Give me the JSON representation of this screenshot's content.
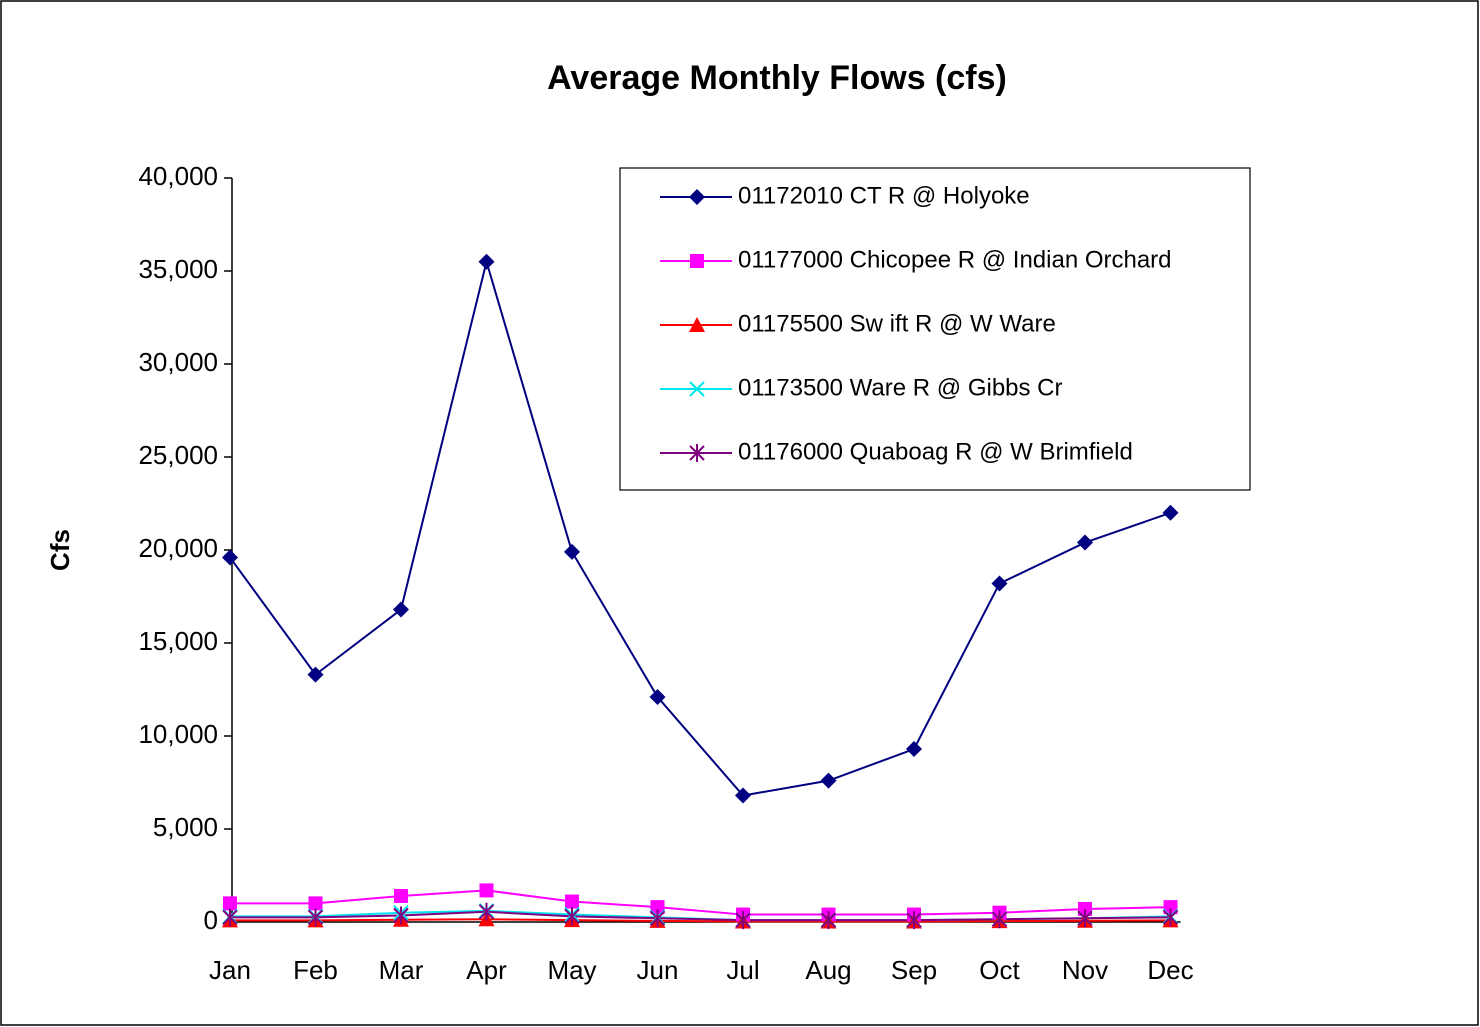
{
  "chart_data": {
    "type": "line",
    "title": "Average Monthly Flows (cfs)",
    "y_label": "Cfs",
    "categories": [
      "Jan",
      "Feb",
      "Mar",
      "Apr",
      "May",
      "Jun",
      "Jul",
      "Aug",
      "Sep",
      "Oct",
      "Nov",
      "Dec"
    ],
    "series": [
      {
        "name": "01172010 CT R @ Holyoke",
        "color": "#000080",
        "marker": "diamond",
        "values": [
          19600,
          13300,
          16800,
          35500,
          19900,
          12100,
          6800,
          7600,
          9300,
          18200,
          20400,
          22000
        ]
      },
      {
        "name": "01177000 Chicopee R @ Indian Orchard",
        "color": "#ff00ff",
        "marker": "square",
        "values": [
          1000,
          1000,
          1400,
          1700,
          1100,
          800,
          400,
          400,
          400,
          500,
          700,
          800
        ]
      },
      {
        "name": "01175500 Sw ift R @ W Ware",
        "color": "#ff0000",
        "marker": "triangle",
        "values": [
          90,
          90,
          120,
          150,
          100,
          60,
          30,
          30,
          30,
          50,
          70,
          90
        ]
      },
      {
        "name": "01173500 Ware R @ Gibbs Cr",
        "color": "#00e5ee",
        "marker": "x",
        "values": [
          300,
          300,
          500,
          600,
          400,
          250,
          100,
          100,
          100,
          150,
          200,
          300
        ]
      },
      {
        "name": "01176000 Quaboag R @ W Brimfield",
        "color": "#800080",
        "marker": "star",
        "values": [
          250,
          250,
          350,
          550,
          300,
          200,
          100,
          100,
          100,
          150,
          200,
          250
        ]
      }
    ],
    "ylim": [
      0,
      40000
    ],
    "yticks": [
      0,
      {
        "value": 5000,
        "label": "5,000"
      },
      {
        "value": 10000,
        "label": "10,000"
      },
      {
        "value": 15000,
        "label": "15,000"
      },
      {
        "value": 20000,
        "label": "20,000"
      },
      {
        "value": 25000,
        "label": "25,000"
      },
      {
        "value": 30000,
        "label": "30,000"
      },
      {
        "value": 35000,
        "label": "35,000"
      },
      {
        "value": 40000,
        "label": "40,000"
      }
    ],
    "legend": "top-right",
    "grid": false
  }
}
